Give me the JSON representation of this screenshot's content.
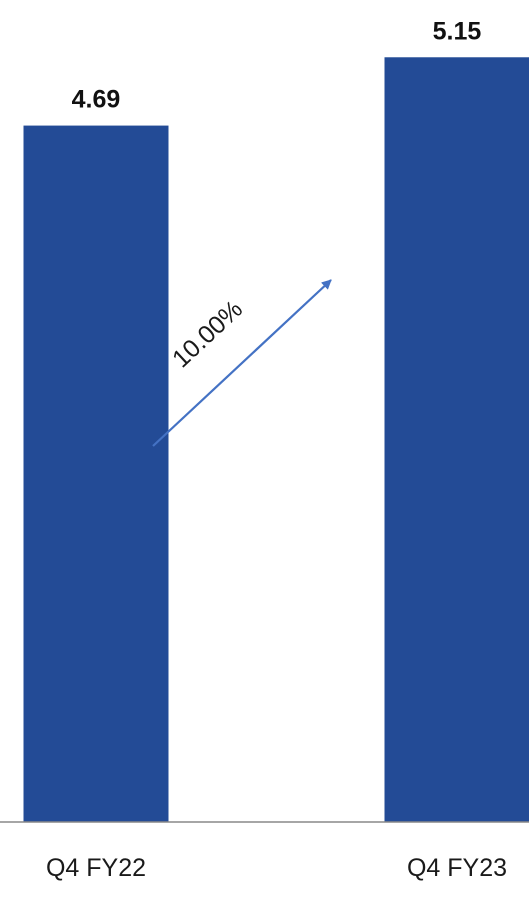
{
  "chart_data": {
    "type": "bar",
    "categories": [
      "Q4 FY22",
      "Q4 FY23"
    ],
    "values": [
      4.69,
      5.15
    ],
    "value_labels": [
      "4.69",
      "5.15"
    ],
    "title": "",
    "xlabel": "",
    "ylabel": "",
    "ylim": [
      0,
      5.3
    ],
    "grid": false,
    "legend": "none",
    "annotation": {
      "type": "growth-arrow",
      "text": "10.00%"
    },
    "colors": {
      "bar": "#234B96",
      "arrow": "#4472C4",
      "axis": "#888888",
      "text": "#111111"
    }
  }
}
